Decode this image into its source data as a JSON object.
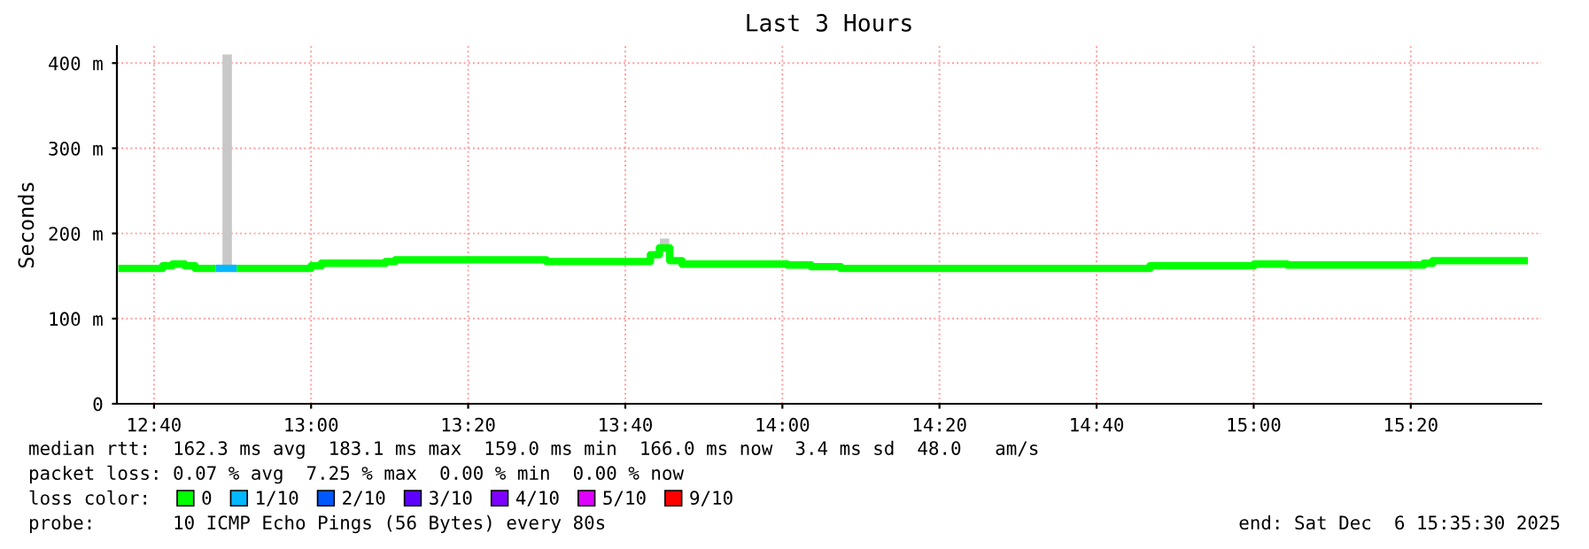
{
  "chart_data": {
    "type": "step",
    "title": "Last 3 Hours",
    "ylabel": "Seconds",
    "legend_title": "loss color:",
    "legend": "bottom",
    "grid": true,
    "x": [
      12.591,
      12.685,
      12.706,
      12.732,
      12.754,
      12.798,
      12.842,
      13.0,
      13.022,
      13.158,
      13.179,
      13.499,
      13.72,
      13.739,
      13.761,
      13.787,
      14.01,
      14.061,
      14.124,
      14.78,
      15.001,
      15.071,
      15.361,
      15.38,
      15.582
    ],
    "series": [
      {
        "name": "0",
        "color": "#00ff00",
        "values": [
          159,
          162,
          164,
          162,
          159,
          null,
          159,
          162,
          165,
          167,
          169,
          167,
          175,
          183,
          168,
          164,
          163,
          161,
          159,
          162,
          164,
          163,
          165,
          168,
          168
        ]
      },
      {
        "name": "1/10",
        "color": "#00b8ff",
        "x": [
          12.798,
          12.842
        ],
        "values": [
          159,
          159
        ]
      },
      {
        "name": "2/10",
        "color": "#0059ff",
        "values": [
          null,
          null,
          null,
          null,
          null,
          null,
          null,
          null,
          null,
          null,
          null,
          null,
          null,
          null,
          null,
          null,
          null,
          null,
          null,
          null,
          null,
          null,
          null,
          null,
          null
        ]
      },
      {
        "name": "3/10",
        "color": "#5e00ff",
        "values": [
          null,
          null,
          null,
          null,
          null,
          null,
          null,
          null,
          null,
          null,
          null,
          null,
          null,
          null,
          null,
          null,
          null,
          null,
          null,
          null,
          null,
          null,
          null,
          null,
          null
        ]
      },
      {
        "name": "4/10",
        "color": "#7e00ff",
        "values": [
          null,
          null,
          null,
          null,
          null,
          null,
          null,
          null,
          null,
          null,
          null,
          null,
          null,
          null,
          null,
          null,
          null,
          null,
          null,
          null,
          null,
          null,
          null,
          null,
          null
        ]
      },
      {
        "name": "5/10",
        "color": "#dd00ff",
        "values": [
          null,
          null,
          null,
          null,
          null,
          null,
          null,
          null,
          null,
          null,
          null,
          null,
          null,
          null,
          null,
          null,
          null,
          null,
          null,
          null,
          null,
          null,
          null,
          null,
          null
        ]
      },
      {
        "name": "9/10",
        "color": "#ff0000",
        "values": [
          null,
          null,
          null,
          null,
          null,
          null,
          null,
          null,
          null,
          null,
          null,
          null,
          null,
          null,
          null,
          null,
          null,
          null,
          null,
          null,
          null,
          null,
          null,
          null,
          null
        ]
      },
      {
        "type": "bar",
        "color": "#c8c8c8",
        "x": [
          12.822,
          13.75
        ],
        "base": [
          160,
          187
        ],
        "values": [
          250,
          7
        ]
      }
    ],
    "xlim": [
      12.588,
      15.61
    ],
    "xticks": [
      {
        "value": 12.6667,
        "label": "12:40"
      },
      {
        "value": 13.0,
        "label": "13:00"
      },
      {
        "value": 13.3333,
        "label": "13:20"
      },
      {
        "value": 13.6667,
        "label": "13:40"
      },
      {
        "value": 14.0,
        "label": "14:00"
      },
      {
        "value": 14.3333,
        "label": "14:20"
      },
      {
        "value": 14.6667,
        "label": "14:40"
      },
      {
        "value": 15.0,
        "label": "15:00"
      },
      {
        "value": 15.3333,
        "label": "15:20"
      }
    ],
    "ylim": [
      0,
      420
    ],
    "yticks": [
      0,
      {
        "value": 100,
        "label": "100 m"
      },
      {
        "value": 200,
        "label": "200 m"
      },
      {
        "value": 300,
        "label": "300 m"
      },
      {
        "value": 400,
        "label": "400 m"
      }
    ],
    "annotations": [
      "median rtt:  162.3 ms avg  183.1 ms max  159.0 ms min  166.0 ms now  3.4 ms sd  48.0   am/s",
      "packet loss: 0.07 % avg  7.25 % max  0.00 % min  0.00 % now",
      "probe:       10 ICMP Echo Pings (56 Bytes) every 80s",
      "end: Sat Dec  6 15:35:30 2025"
    ]
  }
}
